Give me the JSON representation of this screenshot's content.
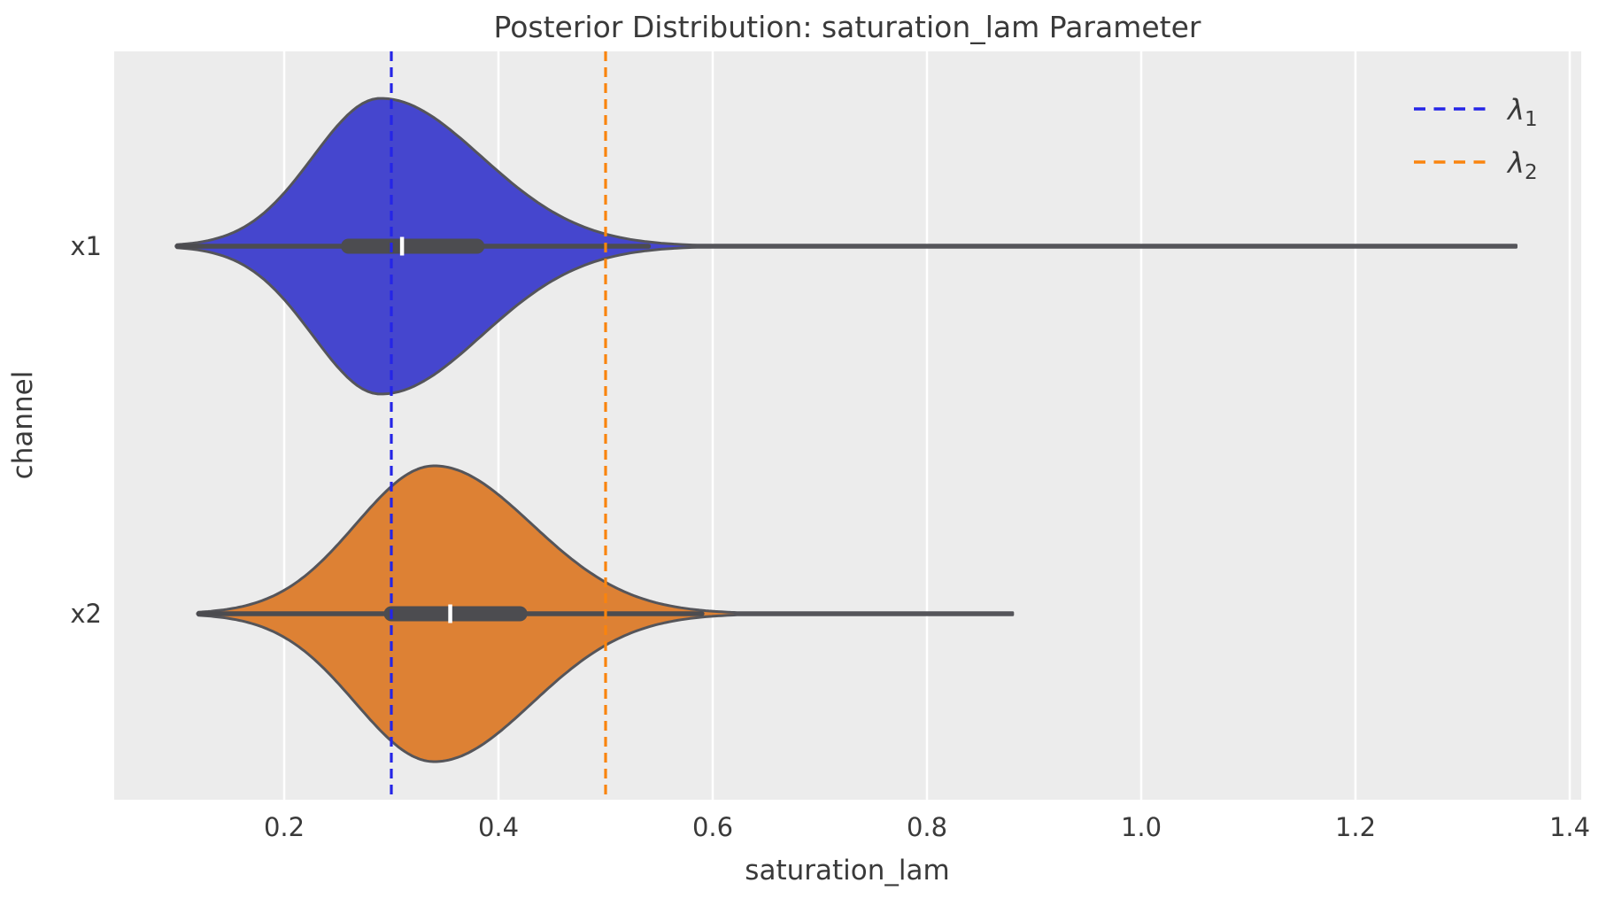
{
  "title": "Posterior Distribution: saturation_lam Parameter",
  "colors": {
    "figure_bg": "#ffffff",
    "axes_bg": "#ececec",
    "gridline": "#ffffff",
    "violin_outline": "#55555a",
    "inner_box": "#4c4c50",
    "median_tick": "#ffffff",
    "text": "#3a3a3a",
    "violin_x1_fill": "#4546ce",
    "violin_x2_fill": "#dd8134",
    "lambda1_line": "#2525e6",
    "lambda2_line": "#f9840e"
  },
  "chart_data": {
    "type": "violin",
    "orientation": "horizontal",
    "title": "Posterior Distribution: saturation_lam Parameter",
    "xlabel": "saturation_lam",
    "ylabel": "channel",
    "categories": [
      "x1",
      "x2"
    ],
    "xtick_labels": [
      "0.2",
      "0.4",
      "0.6",
      "0.8",
      "1.0",
      "1.2",
      "1.4"
    ],
    "xtick_values": [
      0.2,
      0.4,
      0.6,
      0.8,
      1.0,
      1.2,
      1.4
    ],
    "xlim": [
      0.04,
      1.41
    ],
    "grid": "vertical white gridlines on gray panel, no horizontal grid",
    "series": [
      {
        "name": "x1",
        "fill": "#4546ce",
        "min": 0.1,
        "peak": 0.29,
        "q1": 0.26,
        "median": 0.31,
        "q3": 0.38,
        "whisker_low": 0.1,
        "whisker_high": 0.54,
        "max": 1.35,
        "sigma_left": 0.063,
        "sigma_right": 0.094
      },
      {
        "name": "x2",
        "fill": "#dd8134",
        "min": 0.12,
        "peak": 0.34,
        "q1": 0.3,
        "median": 0.355,
        "q3": 0.42,
        "whisker_low": 0.12,
        "whisker_high": 0.59,
        "max": 0.88,
        "sigma_left": 0.073,
        "sigma_right": 0.091
      }
    ],
    "ref_lines": [
      {
        "symbol": "λ",
        "sub": "1",
        "value": 0.3,
        "color": "#2525e6",
        "style": "dashed"
      },
      {
        "symbol": "λ",
        "sub": "2",
        "value": 0.5,
        "color": "#f9840e",
        "style": "dashed"
      }
    ],
    "legend": {
      "position": "upper right",
      "frame": false
    }
  }
}
